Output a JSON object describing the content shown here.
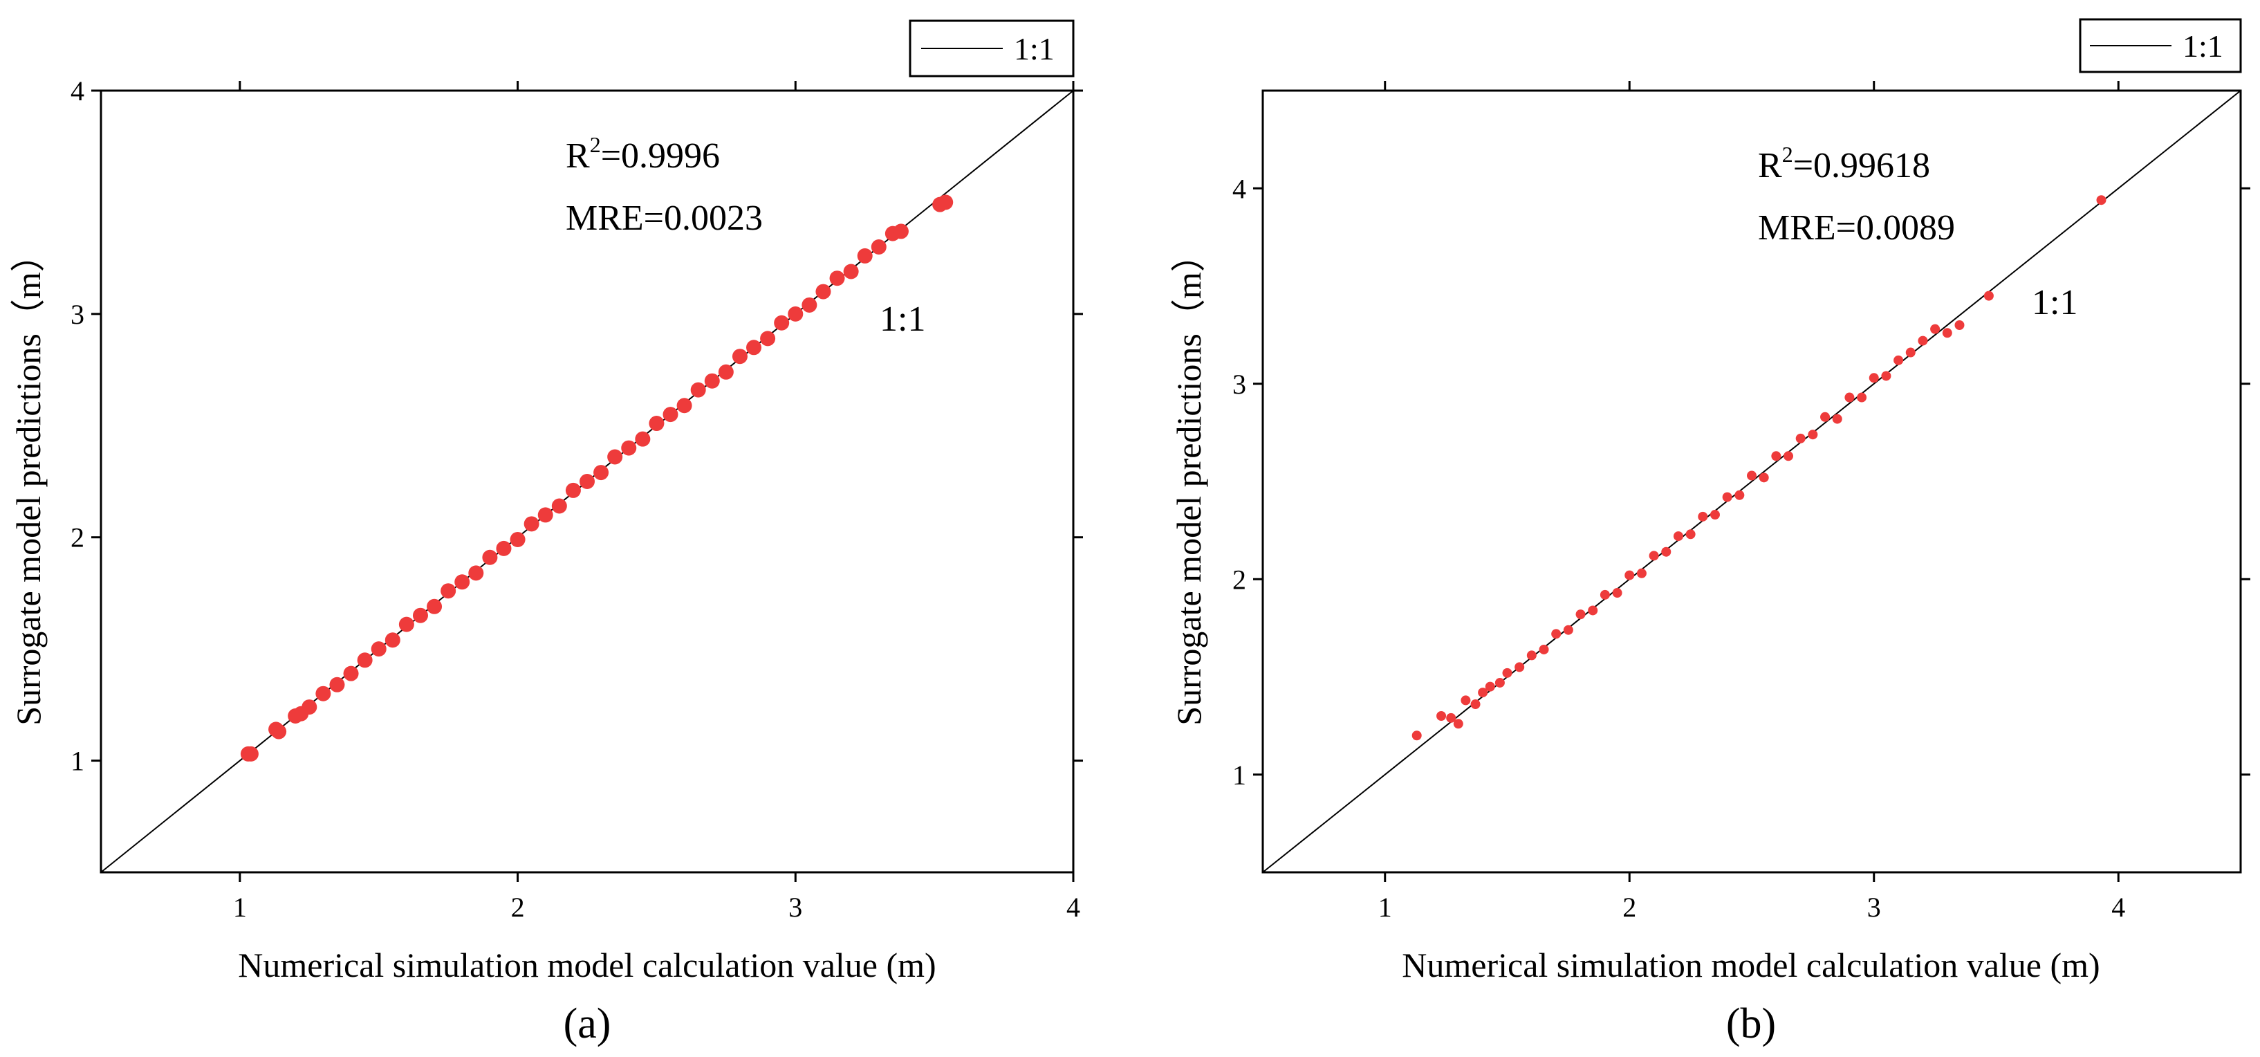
{
  "chart_data": [
    {
      "type": "scatter",
      "panel_label": "(a)",
      "xlabel": "Numerical simulation model calculation value (m)",
      "ylabel": "Surrogate model predictions（m）",
      "xlim": [
        0.5,
        4
      ],
      "ylim": [
        0.5,
        4
      ],
      "xticks": [
        1,
        2,
        3,
        4
      ],
      "yticks": [
        1,
        2,
        3,
        4
      ],
      "grid": false,
      "legend": {
        "position": "top-right-outside",
        "entries": [
          {
            "label": "1:1",
            "style": "line"
          }
        ]
      },
      "annotations": {
        "r2_prefix": "R",
        "r2_exponent": "2",
        "r2_value": "=0.9996",
        "mre": "MRE=0.0023",
        "line_label": "1:1"
      },
      "series": [
        {
          "name": "predictions",
          "color": "#ee3b3b",
          "points": [
            [
              1.03,
              1.03
            ],
            [
              1.04,
              1.03
            ],
            [
              1.13,
              1.14
            ],
            [
              1.14,
              1.13
            ],
            [
              1.2,
              1.2
            ],
            [
              1.22,
              1.21
            ],
            [
              1.25,
              1.24
            ],
            [
              1.3,
              1.3
            ],
            [
              1.35,
              1.34
            ],
            [
              1.4,
              1.39
            ],
            [
              1.45,
              1.45
            ],
            [
              1.5,
              1.5
            ],
            [
              1.55,
              1.54
            ],
            [
              1.6,
              1.61
            ],
            [
              1.65,
              1.65
            ],
            [
              1.7,
              1.69
            ],
            [
              1.75,
              1.76
            ],
            [
              1.8,
              1.8
            ],
            [
              1.85,
              1.84
            ],
            [
              1.9,
              1.91
            ],
            [
              1.95,
              1.95
            ],
            [
              2.0,
              1.99
            ],
            [
              2.05,
              2.06
            ],
            [
              2.1,
              2.1
            ],
            [
              2.15,
              2.14
            ],
            [
              2.2,
              2.21
            ],
            [
              2.25,
              2.25
            ],
            [
              2.3,
              2.29
            ],
            [
              2.35,
              2.36
            ],
            [
              2.4,
              2.4
            ],
            [
              2.45,
              2.44
            ],
            [
              2.5,
              2.51
            ],
            [
              2.55,
              2.55
            ],
            [
              2.6,
              2.59
            ],
            [
              2.65,
              2.66
            ],
            [
              2.7,
              2.7
            ],
            [
              2.75,
              2.74
            ],
            [
              2.8,
              2.81
            ],
            [
              2.85,
              2.85
            ],
            [
              2.9,
              2.89
            ],
            [
              2.95,
              2.96
            ],
            [
              3.0,
              3.0
            ],
            [
              3.05,
              3.04
            ],
            [
              3.1,
              3.1
            ],
            [
              3.15,
              3.16
            ],
            [
              3.2,
              3.19
            ],
            [
              3.25,
              3.26
            ],
            [
              3.3,
              3.3
            ],
            [
              3.35,
              3.36
            ],
            [
              3.38,
              3.37
            ],
            [
              3.52,
              3.49
            ],
            [
              3.54,
              3.5
            ]
          ]
        },
        {
          "name": "1:1",
          "color": "#000000",
          "x": [
            0.5,
            4
          ],
          "y": [
            0.5,
            4
          ]
        }
      ]
    },
    {
      "type": "scatter",
      "panel_label": "(b)",
      "xlabel": "Numerical simulation model calculation value (m)",
      "ylabel": "Surrogate model predictions（m）",
      "xlim": [
        0.5,
        4.5
      ],
      "ylim": [
        0.5,
        4.5
      ],
      "xticks": [
        1,
        2,
        3,
        4
      ],
      "yticks": [
        1,
        2,
        3,
        4
      ],
      "grid": false,
      "legend": {
        "position": "top-right-outside",
        "entries": [
          {
            "label": "1:1",
            "style": "line"
          }
        ]
      },
      "annotations": {
        "r2_prefix": "R",
        "r2_exponent": "2",
        "r2_value": "=0.99618",
        "mre": "MRE=0.0089",
        "line_label": "1:1"
      },
      "series": [
        {
          "name": "predictions",
          "color": "#ee3b3b",
          "points": [
            [
              1.13,
              1.2
            ],
            [
              1.23,
              1.3
            ],
            [
              1.27,
              1.29
            ],
            [
              1.3,
              1.26
            ],
            [
              1.33,
              1.38
            ],
            [
              1.37,
              1.36
            ],
            [
              1.4,
              1.42
            ],
            [
              1.43,
              1.45
            ],
            [
              1.47,
              1.47
            ],
            [
              1.5,
              1.52
            ],
            [
              1.55,
              1.55
            ],
            [
              1.6,
              1.61
            ],
            [
              1.65,
              1.64
            ],
            [
              1.7,
              1.72
            ],
            [
              1.75,
              1.74
            ],
            [
              1.8,
              1.82
            ],
            [
              1.85,
              1.84
            ],
            [
              1.9,
              1.92
            ],
            [
              1.95,
              1.93
            ],
            [
              2.0,
              2.02
            ],
            [
              2.05,
              2.03
            ],
            [
              2.1,
              2.12
            ],
            [
              2.15,
              2.14
            ],
            [
              2.2,
              2.22
            ],
            [
              2.25,
              2.23
            ],
            [
              2.3,
              2.32
            ],
            [
              2.35,
              2.33
            ],
            [
              2.4,
              2.42
            ],
            [
              2.45,
              2.43
            ],
            [
              2.5,
              2.53
            ],
            [
              2.55,
              2.52
            ],
            [
              2.6,
              2.63
            ],
            [
              2.65,
              2.63
            ],
            [
              2.7,
              2.72
            ],
            [
              2.75,
              2.74
            ],
            [
              2.8,
              2.83
            ],
            [
              2.85,
              2.82
            ],
            [
              2.9,
              2.93
            ],
            [
              2.95,
              2.93
            ],
            [
              3.0,
              3.03
            ],
            [
              3.05,
              3.04
            ],
            [
              3.1,
              3.12
            ],
            [
              3.15,
              3.16
            ],
            [
              3.2,
              3.22
            ],
            [
              3.25,
              3.28
            ],
            [
              3.3,
              3.26
            ],
            [
              3.35,
              3.3
            ],
            [
              3.47,
              3.45
            ],
            [
              3.93,
              3.94
            ]
          ]
        },
        {
          "name": "1:1",
          "color": "#000000",
          "x": [
            0.5,
            4.5
          ],
          "y": [
            0.5,
            4.5
          ]
        }
      ]
    }
  ]
}
